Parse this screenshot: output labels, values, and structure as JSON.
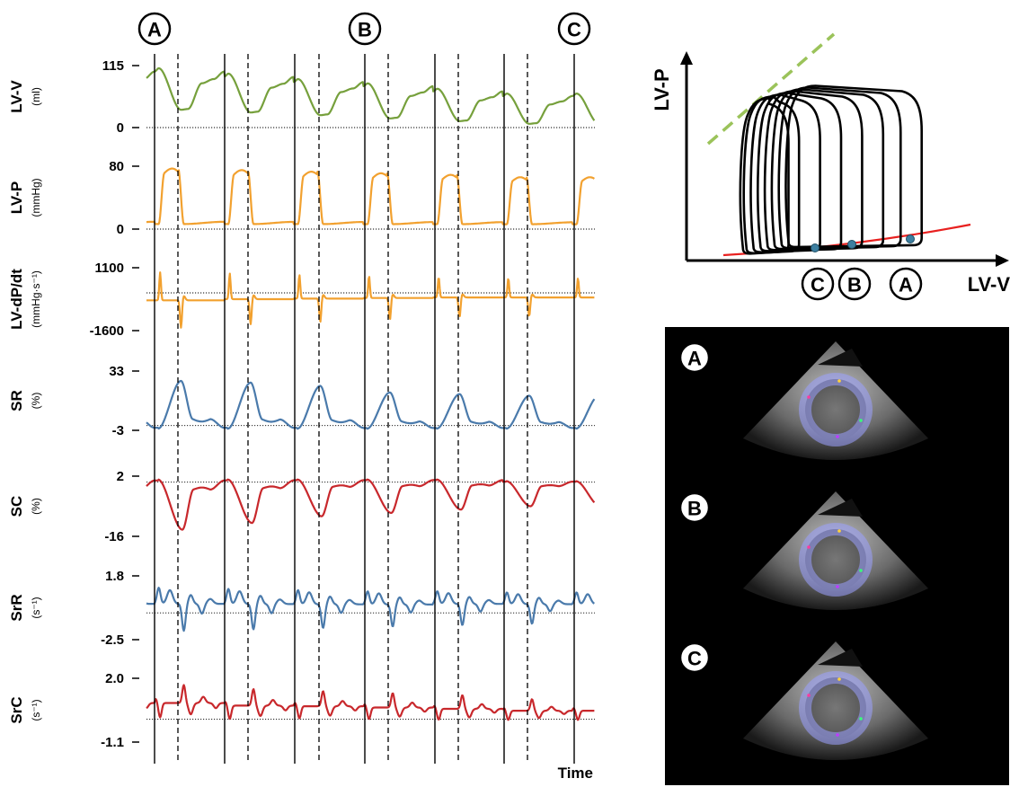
{
  "time_label": "Time",
  "cycle_markers": [
    "A",
    "B",
    "C"
  ],
  "colors": {
    "volume": "#76a03c",
    "pressure": "#f2a12f",
    "strain_radial": "#4a7aab",
    "strain_circ": "#c8282c",
    "pv_loop": "#000000",
    "espvr": "#9bc35a",
    "edpvr": "#e8201f",
    "pv_points": "#3d7fa0"
  },
  "panels": [
    {
      "name": "LV-V",
      "unit": "(ml)",
      "ticks": [
        "115",
        "0"
      ],
      "color_key": "volume"
    },
    {
      "name": "LV-P",
      "unit": "(mmHg)",
      "ticks": [
        "80",
        "0"
      ],
      "color_key": "pressure"
    },
    {
      "name": "LV-dP/dt",
      "unit": "(mmHg·s⁻¹)",
      "ticks": [
        "1100",
        "-1600"
      ],
      "color_key": "pressure"
    },
    {
      "name": "SR",
      "unit": "(%)",
      "ticks": [
        "33",
        "-3"
      ],
      "color_key": "strain_radial"
    },
    {
      "name": "SC",
      "unit": "(%)",
      "ticks": [
        "2",
        "-16"
      ],
      "color_key": "strain_circ"
    },
    {
      "name": "SrR",
      "unit": "(s⁻¹)",
      "ticks": [
        "1.8",
        "-2.5"
      ],
      "color_key": "strain_radial"
    },
    {
      "name": "SrC",
      "unit": "(s⁻¹)",
      "ticks": [
        "2.0",
        "-1.1"
      ],
      "color_key": "strain_circ"
    }
  ],
  "pv_panel": {
    "ylabel": "LV-P",
    "xlabel": "LV-V",
    "markers": [
      "C",
      "B",
      "A"
    ]
  },
  "echo_panel": {
    "labels": [
      "A",
      "B",
      "C"
    ]
  },
  "chart_data": {
    "type": "line",
    "xlabel": "Time",
    "beats": 6,
    "series": [
      {
        "name": "LV-V",
        "unit": "ml",
        "ylim": [
          0,
          115
        ],
        "beat_max": [
          110,
          100,
          90,
          82,
          72,
          63
        ],
        "beat_min": [
          33,
          28,
          23,
          17,
          12,
          7
        ]
      },
      {
        "name": "LV-P",
        "unit": "mmHg",
        "ylim": [
          0,
          80
        ],
        "beat_max": [
          77,
          75,
          73,
          71,
          69,
          66
        ],
        "beat_min": [
          5,
          5,
          5,
          5,
          5,
          5
        ]
      },
      {
        "name": "LV-dP/dt",
        "unit": "mmHg·s⁻¹",
        "ylim": [
          -1600,
          1100
        ],
        "beat_max": [
          900,
          850,
          800,
          750,
          700,
          650
        ],
        "beat_min": [
          -1500,
          -1350,
          -1250,
          -1150,
          -1050,
          -1000
        ]
      },
      {
        "name": "SR",
        "unit": "%",
        "ylim": [
          -3,
          33
        ],
        "beat_max": [
          27,
          26,
          24,
          20,
          19,
          18
        ],
        "beat_min": [
          -2,
          -2,
          -2,
          -2,
          -2,
          -2
        ]
      },
      {
        "name": "SC",
        "unit": "%",
        "ylim": [
          -16,
          2
        ],
        "beat_max": [
          1,
          1,
          1,
          1,
          1,
          0.5
        ],
        "beat_min": [
          -14,
          -12,
          -10,
          -9,
          -8,
          -7
        ]
      },
      {
        "name": "SrR",
        "unit": "s⁻¹",
        "ylim": [
          -2.5,
          1.8
        ],
        "beat_max": [
          1.3,
          1.2,
          1.1,
          1.0,
          1.0,
          0.9
        ],
        "beat_min": [
          -2.0,
          -1.9,
          -1.8,
          -1.7,
          -1.6,
          -1.5
        ]
      },
      {
        "name": "SrC",
        "unit": "s⁻¹",
        "ylim": [
          -1.1,
          2.0
        ],
        "beat_max": [
          1.7,
          1.5,
          1.4,
          1.3,
          1.2,
          1.0
        ],
        "beat_min": [
          -0.8,
          -0.8,
          -0.7,
          -0.7,
          -0.7,
          -0.6
        ]
      }
    ],
    "pv_loops": {
      "type": "line",
      "xlabel": "LV-V",
      "ylabel": "LV-P",
      "loops": [
        {
          "v_min": 12,
          "v_max": 25,
          "p_peak": 62
        },
        {
          "v_min": 13,
          "v_max": 28,
          "p_peak": 63
        },
        {
          "v_min": 15,
          "v_max": 34,
          "p_peak": 64
        },
        {
          "v_min": 17,
          "v_max": 40,
          "p_peak": 65
        },
        {
          "v_min": 19,
          "v_max": 46,
          "p_peak": 66
        },
        {
          "v_min": 21,
          "v_max": 52,
          "p_peak": 67
        },
        {
          "v_min": 23,
          "v_max": 57,
          "p_peak": 68
        },
        {
          "v_min": 25,
          "v_max": 63,
          "p_peak": 69
        }
      ]
    }
  }
}
